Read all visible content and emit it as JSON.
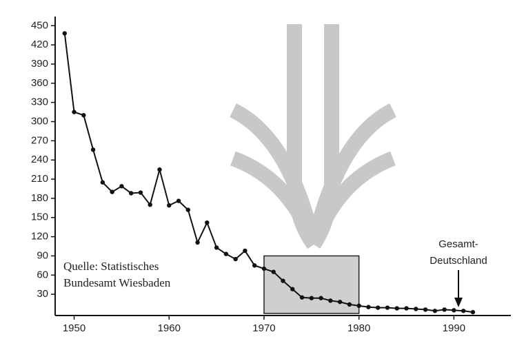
{
  "chart_data": {
    "type": "line",
    "x": [
      1949,
      1950,
      1951,
      1952,
      1953,
      1954,
      1955,
      1956,
      1957,
      1958,
      1959,
      1960,
      1961,
      1962,
      1963,
      1964,
      1965,
      1966,
      1967,
      1968,
      1969,
      1970,
      1971,
      1972,
      1973,
      1974,
      1975,
      1976,
      1977,
      1978,
      1979,
      1980,
      1981,
      1982,
      1983,
      1984,
      1985,
      1986,
      1987,
      1988,
      1989,
      1990,
      1991,
      1992
    ],
    "values": [
      438,
      315,
      310,
      256,
      205,
      190,
      199,
      188,
      189,
      170,
      225,
      169,
      176,
      162,
      111,
      142,
      103,
      93,
      85,
      98,
      75,
      70,
      65,
      51,
      38,
      25,
      24,
      24,
      20,
      18,
      14,
      12,
      10,
      9,
      9,
      8,
      8,
      7,
      6,
      4,
      6,
      5,
      4,
      2
    ],
    "color": "#111",
    "xlim": [
      1948,
      1996
    ],
    "ylim": [
      0,
      460
    ],
    "xticks": [
      1950,
      1960,
      1970,
      1980,
      1990
    ],
    "yticks": [
      30,
      60,
      90,
      120,
      150,
      180,
      210,
      240,
      270,
      300,
      330,
      360,
      390,
      420,
      450
    ],
    "highlight": {
      "x": [
        1970,
        1980
      ],
      "y": [
        0,
        90
      ]
    },
    "source_note": [
      "Quelle: Statistisches",
      "Bundesamt Wiesbaden"
    ],
    "callout": [
      "Gesamt-",
      "Deutschland"
    ]
  }
}
